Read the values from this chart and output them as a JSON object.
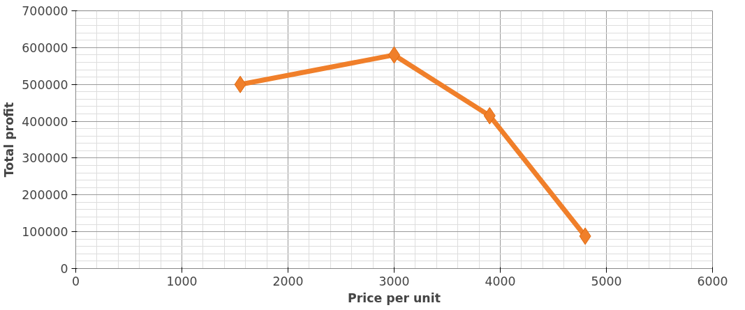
{
  "chart_data": {
    "type": "line",
    "xlabel": "Price per unit",
    "ylabel": "Total profit",
    "x": [
      1550,
      3000,
      3900,
      4800
    ],
    "series": [
      {
        "color": "#f07f2a",
        "values": [
          500000,
          580000,
          415000,
          88000
        ]
      }
    ],
    "xlim": [
      0,
      6000
    ],
    "xticks": [
      0,
      1000,
      2000,
      3000,
      4000,
      5000,
      6000
    ],
    "ylim": [
      0,
      700000
    ],
    "yticks": [
      0,
      100000,
      200000,
      300000,
      400000,
      500000,
      600000,
      700000
    ],
    "grid": true,
    "marker": "diamond",
    "line_style": "solid"
  }
}
